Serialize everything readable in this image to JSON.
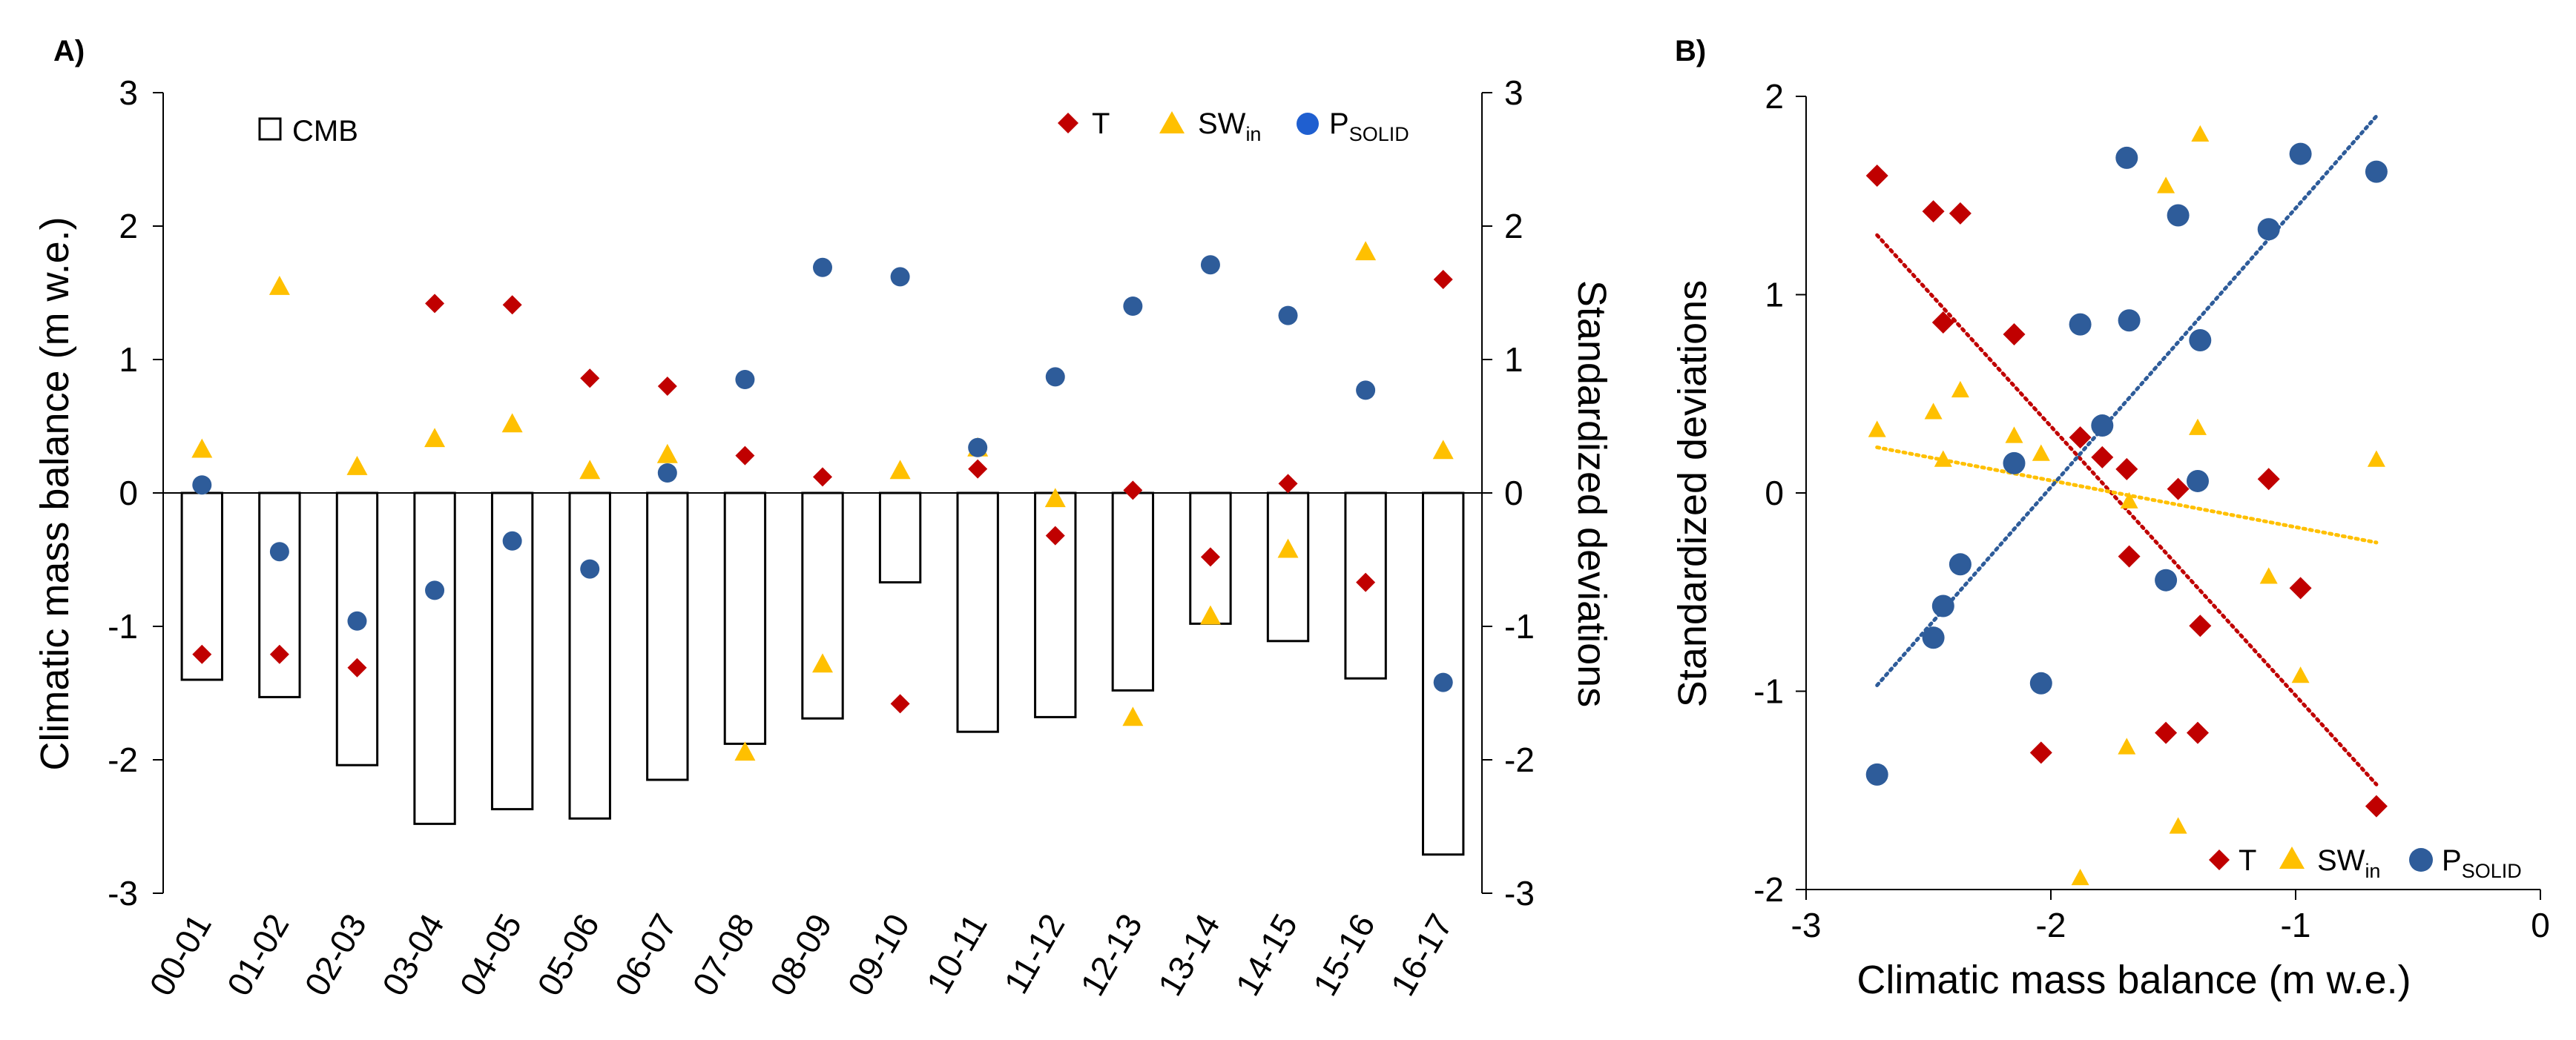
{
  "chart_data": [
    {
      "panel": "A)",
      "type": "bar",
      "ylabel": "Climatic mass balance  (m w.e.)",
      "y2label": "Standardized deviations",
      "ylim": [
        -3,
        3
      ],
      "y2lim": [
        -3,
        3
      ],
      "yticks": [
        "3",
        "2",
        "1",
        "0",
        "-1",
        "-2",
        "-3"
      ],
      "y2ticks": [
        "3",
        "2",
        "1",
        "0",
        "-1",
        "-2",
        "-3"
      ],
      "categories": [
        "00-01",
        "01-02",
        "02-03",
        "03-04",
        "04-05",
        "05-06",
        "06-07",
        "07-08",
        "08-09",
        "09-10",
        "10-11",
        "11-12",
        "12-13",
        "13-14",
        "14-15",
        "15-16",
        "16-17"
      ],
      "legend": {
        "cmb": "CMB",
        "t": "T",
        "sw": "SW",
        "sw_sub": "in",
        "p": "P",
        "p_sub": "SOLID"
      },
      "series": [
        {
          "name": "CMB",
          "kind": "bar",
          "color": "#ffffff",
          "values": [
            -1.4,
            -1.53,
            -2.04,
            -2.48,
            -2.37,
            -2.44,
            -2.15,
            -1.88,
            -1.69,
            -0.67,
            -1.79,
            -1.68,
            -1.48,
            -0.98,
            -1.11,
            -1.39,
            -2.71
          ]
        },
        {
          "name": "T",
          "kind": "marker",
          "marker": "diamond",
          "color": "#c00000",
          "values": [
            -1.21,
            -1.21,
            -1.31,
            1.42,
            1.41,
            0.86,
            0.8,
            0.28,
            0.12,
            -1.58,
            0.18,
            -0.32,
            0.02,
            -0.48,
            0.07,
            -0.67,
            1.6
          ]
        },
        {
          "name": "SWin",
          "kind": "marker",
          "marker": "triangle",
          "color": "#ffc000",
          "values": [
            0.33,
            1.55,
            0.2,
            0.41,
            0.52,
            0.17,
            0.29,
            -1.94,
            -1.28,
            0.17,
            0.34,
            -0.04,
            -1.68,
            -0.92,
            -0.42,
            1.81,
            0.32
          ]
        },
        {
          "name": "PSOLID",
          "kind": "marker",
          "marker": "circle",
          "color": "#2e5c9a",
          "values": [
            0.06,
            -0.44,
            -0.96,
            -0.73,
            -0.36,
            -0.57,
            0.15,
            0.85,
            1.69,
            1.62,
            0.34,
            0.87,
            1.4,
            1.71,
            1.33,
            0.77,
            -1.42
          ]
        }
      ]
    },
    {
      "panel": "B)",
      "type": "scatter",
      "xlabel": "Climatic mass balance (m w.e.)",
      "ylabel": "Standardized deviations",
      "xlim": [
        -3,
        0
      ],
      "ylim": [
        -2,
        2
      ],
      "xticks": [
        "-3",
        "-2",
        "-1",
        "0"
      ],
      "yticks": [
        "2",
        "1",
        "0",
        "-1",
        "-2"
      ],
      "legend": {
        "t": "T",
        "sw": "SW",
        "sw_sub": "in",
        "p": "P",
        "p_sub": "SOLID"
      },
      "x": [
        -1.4,
        -1.53,
        -2.04,
        -2.48,
        -2.37,
        -2.44,
        -2.15,
        -1.88,
        -1.69,
        -0.67,
        -1.79,
        -1.68,
        -1.48,
        -0.98,
        -1.11,
        -1.39,
        -2.71
      ],
      "series": [
        {
          "name": "T",
          "marker": "diamond",
          "color": "#c00000",
          "values": [
            -1.21,
            -1.21,
            -1.31,
            1.42,
            1.41,
            0.86,
            0.8,
            0.28,
            0.12,
            -1.58,
            0.18,
            -0.32,
            0.02,
            -0.48,
            0.07,
            -0.67,
            1.6
          ],
          "trend": [
            [
              -2.71,
              1.3
            ],
            [
              -0.67,
              -1.47
            ]
          ]
        },
        {
          "name": "SWin",
          "marker": "triangle",
          "color": "#ffc000",
          "values": [
            0.33,
            1.55,
            0.2,
            0.41,
            0.52,
            0.17,
            0.29,
            -1.94,
            -1.28,
            0.17,
            0.34,
            -0.04,
            -1.68,
            -0.92,
            -0.42,
            1.81,
            0.32
          ],
          "trend": [
            [
              -2.71,
              0.23
            ],
            [
              -0.67,
              -0.25
            ]
          ]
        },
        {
          "name": "PSOLID",
          "marker": "circle",
          "color": "#2e5c9a",
          "values": [
            0.06,
            -0.44,
            -0.96,
            -0.73,
            -0.36,
            -0.57,
            0.15,
            0.85,
            1.69,
            1.62,
            0.34,
            0.87,
            1.4,
            1.71,
            1.33,
            0.77,
            -1.42
          ],
          "trend": [
            [
              -2.71,
              -0.97
            ],
            [
              -0.67,
              1.9
            ]
          ]
        }
      ]
    }
  ]
}
